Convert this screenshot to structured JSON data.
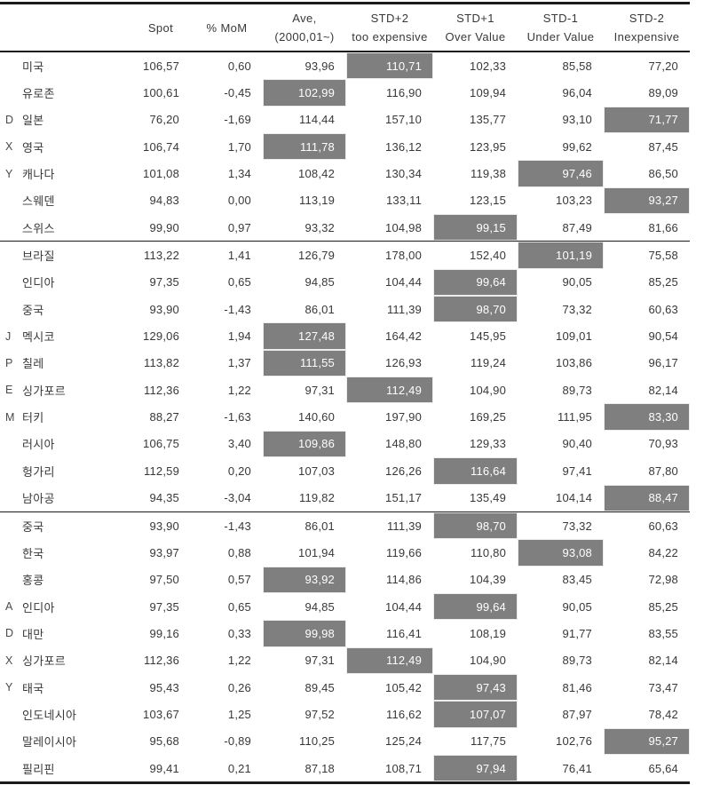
{
  "colors": {
    "background": "#ffffff",
    "text": "#383838",
    "border": "#1a1a1a",
    "highlight_bg": "#7f7f7f",
    "highlight_text": "#ffffff"
  },
  "table": {
    "columns": [
      {
        "key": "label",
        "line1": "",
        "line2": ""
      },
      {
        "key": "spot",
        "line1": "Spot",
        "line2": ""
      },
      {
        "key": "mom",
        "line1": "% MoM",
        "line2": ""
      },
      {
        "key": "ave",
        "line1": "Ave,",
        "line2": "(2000,01~)"
      },
      {
        "key": "std_p2",
        "line1": "STD+2",
        "line2": "too expensive"
      },
      {
        "key": "std_p1",
        "line1": "STD+1",
        "line2": "Over Value"
      },
      {
        "key": "std_m1",
        "line1": "STD-1",
        "line2": "Under Value"
      },
      {
        "key": "std_m2",
        "line1": "STD-2",
        "line2": "Inexpensive"
      }
    ],
    "groups": [
      {
        "index_label": "DXY",
        "rows": [
          {
            "letter": "",
            "name": "미국",
            "spot": "106,57",
            "mom": "0,60",
            "ave": "93,96",
            "std_p2": "110,71",
            "std_p1": "102,33",
            "std_m1": "85,58",
            "std_m2": "77,20",
            "highlight": "std_p2"
          },
          {
            "letter": "",
            "name": "유로존",
            "spot": "100,61",
            "mom": "-0,45",
            "ave": "102,99",
            "std_p2": "116,90",
            "std_p1": "109,94",
            "std_m1": "96,04",
            "std_m2": "89,09",
            "highlight": "ave"
          },
          {
            "letter": "D",
            "name": "일본",
            "spot": "76,20",
            "mom": "-1,69",
            "ave": "114,44",
            "std_p2": "157,10",
            "std_p1": "135,77",
            "std_m1": "93,10",
            "std_m2": "71,77",
            "highlight": "std_m2"
          },
          {
            "letter": "X",
            "name": "영국",
            "spot": "106,74",
            "mom": "1,70",
            "ave": "111,78",
            "std_p2": "136,12",
            "std_p1": "123,95",
            "std_m1": "99,62",
            "std_m2": "87,45",
            "highlight": "ave"
          },
          {
            "letter": "Y",
            "name": "캐나다",
            "spot": "101,08",
            "mom": "1,34",
            "ave": "108,42",
            "std_p2": "130,34",
            "std_p1": "119,38",
            "std_m1": "97,46",
            "std_m2": "86,50",
            "highlight": "std_m1"
          },
          {
            "letter": "",
            "name": "스웨덴",
            "spot": "94,83",
            "mom": "0,00",
            "ave": "113,19",
            "std_p2": "133,11",
            "std_p1": "123,15",
            "std_m1": "103,23",
            "std_m2": "93,27",
            "highlight": "std_m2"
          },
          {
            "letter": "",
            "name": "스위스",
            "spot": "99,90",
            "mom": "0,97",
            "ave": "93,32",
            "std_p2": "104,98",
            "std_p1": "99,15",
            "std_m1": "87,49",
            "std_m2": "81,66",
            "highlight": "std_p1"
          }
        ]
      },
      {
        "index_label": "JPEM",
        "rows": [
          {
            "letter": "",
            "name": "브라질",
            "spot": "113,22",
            "mom": "1,41",
            "ave": "126,79",
            "std_p2": "178,00",
            "std_p1": "152,40",
            "std_m1": "101,19",
            "std_m2": "75,58",
            "highlight": "std_m1"
          },
          {
            "letter": "",
            "name": "인디아",
            "spot": "97,35",
            "mom": "0,65",
            "ave": "94,85",
            "std_p2": "104,44",
            "std_p1": "99,64",
            "std_m1": "90,05",
            "std_m2": "85,25",
            "highlight": "std_p1"
          },
          {
            "letter": "",
            "name": "중국",
            "spot": "93,90",
            "mom": "-1,43",
            "ave": "86,01",
            "std_p2": "111,39",
            "std_p1": "98,70",
            "std_m1": "73,32",
            "std_m2": "60,63",
            "highlight": "std_p1"
          },
          {
            "letter": "J",
            "name": "멕시코",
            "spot": "129,06",
            "mom": "1,94",
            "ave": "127,48",
            "std_p2": "164,42",
            "std_p1": "145,95",
            "std_m1": "109,01",
            "std_m2": "90,54",
            "highlight": "ave"
          },
          {
            "letter": "P",
            "name": "칠레",
            "spot": "113,82",
            "mom": "1,37",
            "ave": "111,55",
            "std_p2": "126,93",
            "std_p1": "119,24",
            "std_m1": "103,86",
            "std_m2": "96,17",
            "highlight": "ave"
          },
          {
            "letter": "E",
            "name": "싱가포르",
            "spot": "112,36",
            "mom": "1,22",
            "ave": "97,31",
            "std_p2": "112,49",
            "std_p1": "104,90",
            "std_m1": "89,73",
            "std_m2": "82,14",
            "highlight": "std_p2"
          },
          {
            "letter": "M",
            "name": "터키",
            "spot": "88,27",
            "mom": "-1,63",
            "ave": "140,60",
            "std_p2": "197,90",
            "std_p1": "169,25",
            "std_m1": "111,95",
            "std_m2": "83,30",
            "highlight": "std_m2"
          },
          {
            "letter": "",
            "name": "러시아",
            "spot": "106,75",
            "mom": "3,40",
            "ave": "109,86",
            "std_p2": "148,80",
            "std_p1": "129,33",
            "std_m1": "90,40",
            "std_m2": "70,93",
            "highlight": "ave"
          },
          {
            "letter": "",
            "name": "헝가리",
            "spot": "112,59",
            "mom": "0,20",
            "ave": "107,03",
            "std_p2": "126,26",
            "std_p1": "116,64",
            "std_m1": "97,41",
            "std_m2": "87,80",
            "highlight": "std_p1"
          },
          {
            "letter": "",
            "name": "남아공",
            "spot": "94,35",
            "mom": "-3,04",
            "ave": "119,82",
            "std_p2": "151,17",
            "std_p1": "135,49",
            "std_m1": "104,14",
            "std_m2": "88,47",
            "highlight": "std_m2"
          }
        ]
      },
      {
        "index_label": "ADXY",
        "rows": [
          {
            "letter": "",
            "name": "중국",
            "spot": "93,90",
            "mom": "-1,43",
            "ave": "86,01",
            "std_p2": "111,39",
            "std_p1": "98,70",
            "std_m1": "73,32",
            "std_m2": "60,63",
            "highlight": "std_p1"
          },
          {
            "letter": "",
            "name": "한국",
            "spot": "93,97",
            "mom": "0,88",
            "ave": "101,94",
            "std_p2": "119,66",
            "std_p1": "110,80",
            "std_m1": "93,08",
            "std_m2": "84,22",
            "highlight": "std_m1"
          },
          {
            "letter": "",
            "name": "홍콩",
            "spot": "97,50",
            "mom": "0,57",
            "ave": "93,92",
            "std_p2": "114,86",
            "std_p1": "104,39",
            "std_m1": "83,45",
            "std_m2": "72,98",
            "highlight": "ave"
          },
          {
            "letter": "A",
            "name": "인디아",
            "spot": "97,35",
            "mom": "0,65",
            "ave": "94,85",
            "std_p2": "104,44",
            "std_p1": "99,64",
            "std_m1": "90,05",
            "std_m2": "85,25",
            "highlight": "std_p1"
          },
          {
            "letter": "D",
            "name": "대만",
            "spot": "99,16",
            "mom": "0,33",
            "ave": "99,98",
            "std_p2": "116,41",
            "std_p1": "108,19",
            "std_m1": "91,77",
            "std_m2": "83,55",
            "highlight": "ave"
          },
          {
            "letter": "X",
            "name": "싱가포르",
            "spot": "112,36",
            "mom": "1,22",
            "ave": "97,31",
            "std_p2": "112,49",
            "std_p1": "104,90",
            "std_m1": "89,73",
            "std_m2": "82,14",
            "highlight": "std_p2"
          },
          {
            "letter": "Y",
            "name": "태국",
            "spot": "95,43",
            "mom": "0,26",
            "ave": "89,45",
            "std_p2": "105,42",
            "std_p1": "97,43",
            "std_m1": "81,46",
            "std_m2": "73,47",
            "highlight": "std_p1"
          },
          {
            "letter": "",
            "name": "인도네시아",
            "spot": "103,67",
            "mom": "1,25",
            "ave": "97,52",
            "std_p2": "116,62",
            "std_p1": "107,07",
            "std_m1": "87,97",
            "std_m2": "78,42",
            "highlight": "std_p1"
          },
          {
            "letter": "",
            "name": "말레이시아",
            "spot": "95,68",
            "mom": "-0,89",
            "ave": "110,25",
            "std_p2": "125,24",
            "std_p1": "117,75",
            "std_m1": "102,76",
            "std_m2": "95,27",
            "highlight": "std_m2"
          },
          {
            "letter": "",
            "name": "필리핀",
            "spot": "99,41",
            "mom": "0,21",
            "ave": "87,18",
            "std_p2": "108,71",
            "std_p1": "97,94",
            "std_m1": "76,41",
            "std_m2": "65,64",
            "highlight": "std_p1"
          }
        ]
      }
    ]
  }
}
